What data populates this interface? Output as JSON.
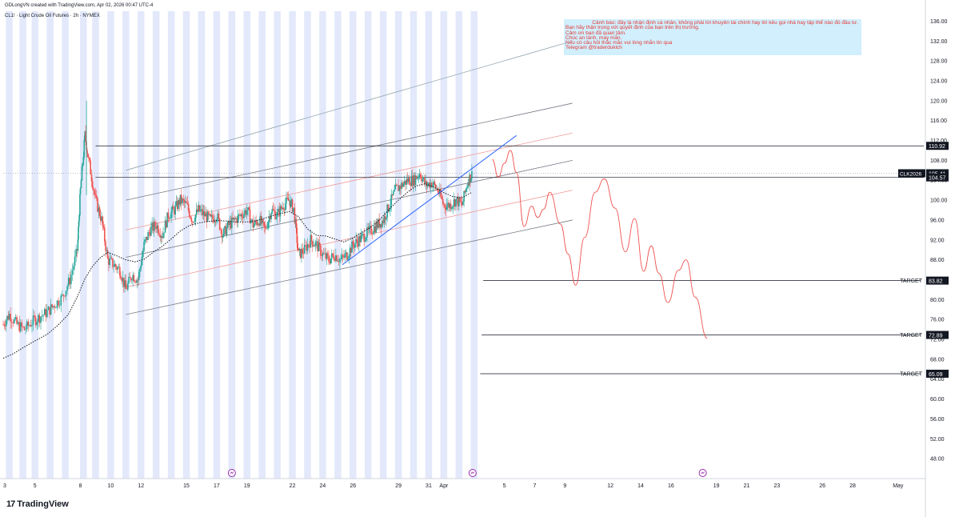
{
  "header": {
    "credit": "GDLongVN created with TradingView.com, Apr 02, 2026 00:47 UTC-4",
    "symbol_line": "CL1! · Light Crude Oil Futures · 2h · NYMEX"
  },
  "note": {
    "lines": [
      "Cảnh báo: đây là nhận định cá nhân, không phải lời khuyên tài chính hay lời kêu gọi nhà hay tập thể nào đó đầu tư.",
      "Bạn hãy thận trọng với quyết định của bạn trên thị trường.",
      "Cảm ơn bạn đã quan tâm.",
      "Chúc an lành, may mắn.",
      "Nếu có câu hỏi thắc mắc vui lòng nhắn tin qua",
      "Telegram @traderdukich"
    ]
  },
  "branding": {
    "name": "TradingView",
    "logo_text": "17"
  },
  "colors": {
    "candle_up": "#26a69a",
    "candle_down": "#ef5350",
    "session_band": "#e3e9fb",
    "projection": "#ef5350",
    "trendline": "#2962ff",
    "channel": "#787b86",
    "ma": "#131722",
    "note_bg": "#b3e5fc",
    "note_text": "#e53935"
  },
  "chart_data": {
    "type": "candlestick",
    "title": "CL1! · Light Crude Oil Futures · 2h · NYMEX",
    "y_ticks": [
      136.0,
      132.0,
      128.0,
      124.0,
      120.0,
      116.0,
      112.0,
      108.0,
      104.0,
      100.0,
      96.0,
      92.0,
      88.0,
      84.0,
      80.0,
      76.0,
      72.0,
      68.0,
      64.0,
      60.0,
      56.0,
      52.0,
      48.0
    ],
    "y_tick_labels": [
      "136.00",
      "132.00",
      "128.00",
      "124.00",
      "120.00",
      "116.00",
      "112.00",
      "108.00",
      "104.00",
      "100.00",
      "96.00",
      "92.00",
      "88.00",
      "84.00",
      "80.00",
      "76.00",
      "72.00",
      "68.00",
      "64.00",
      "60.00",
      "56.00",
      "52.00",
      "48.00"
    ],
    "ylim": [
      44,
      138
    ],
    "x_ticks": [
      {
        "label": "3",
        "day": 3
      },
      {
        "label": "5",
        "day": 5
      },
      {
        "label": "8",
        "day": 8
      },
      {
        "label": "10",
        "day": 10
      },
      {
        "label": "12",
        "day": 12
      },
      {
        "label": "15",
        "day": 15
      },
      {
        "label": "17",
        "day": 17
      },
      {
        "label": "19",
        "day": 19
      },
      {
        "label": "22",
        "day": 22
      },
      {
        "label": "24",
        "day": 24
      },
      {
        "label": "26",
        "day": 26
      },
      {
        "label": "29",
        "day": 29
      },
      {
        "label": "31",
        "day": 31
      },
      {
        "label": "Apr",
        "day": 32
      },
      {
        "label": "5",
        "day": 36
      },
      {
        "label": "7",
        "day": 38
      },
      {
        "label": "9",
        "day": 40
      },
      {
        "label": "12",
        "day": 43
      },
      {
        "label": "14",
        "day": 45
      },
      {
        "label": "16",
        "day": 47
      },
      {
        "label": "19",
        "day": 50
      },
      {
        "label": "21",
        "day": 52
      },
      {
        "label": "23",
        "day": 54
      },
      {
        "label": "26",
        "day": 57
      },
      {
        "label": "28",
        "day": 59
      },
      {
        "label": "May",
        "day": 62
      }
    ],
    "xlim": [
      2.9,
      63.7
    ],
    "price_labels": [
      {
        "text": "110.92",
        "value": 110.92,
        "style": "black"
      },
      {
        "text": "105.41",
        "value": 105.41,
        "style": "black",
        "tag": "CLK2026"
      },
      {
        "text": "01:22:48",
        "value": 104.3,
        "style": "timer"
      },
      {
        "text": "104.57",
        "value": 104.57,
        "style": "black"
      },
      {
        "text": "83.82",
        "value": 83.82,
        "style": "black",
        "tag": "TARGET"
      },
      {
        "text": "72.89",
        "value": 72.89,
        "style": "black",
        "tag": "TARGET"
      },
      {
        "text": "65.09",
        "value": 65.09,
        "style": "black",
        "tag": "TARGET"
      }
    ],
    "horizontal_levels": [
      {
        "value": 110.92,
        "from_day": 9,
        "to_day": 63.7,
        "label": ""
      },
      {
        "value": 104.57,
        "from_day": 9,
        "to_day": 63.7,
        "label": ""
      },
      {
        "value": 83.82,
        "from_day": 34.6,
        "to_day": 63.5,
        "label": "TARGET"
      },
      {
        "value": 72.89,
        "from_day": 34.5,
        "to_day": 63.5,
        "label": "TARGET"
      },
      {
        "value": 65.09,
        "from_day": 34.4,
        "to_day": 63.5,
        "label": "TARGET"
      }
    ],
    "channel_lines": [
      {
        "from": [
          11,
          100.0
        ],
        "to": [
          40.5,
          119.5
        ],
        "color": "#787b86"
      },
      {
        "from": [
          11,
          77.0
        ],
        "to": [
          40.5,
          96.0
        ],
        "color": "#787b86"
      },
      {
        "from": [
          11,
          88.5
        ],
        "to": [
          40.5,
          108.0
        ],
        "color": "#787b86"
      },
      {
        "from": [
          11,
          82.5
        ],
        "to": [
          40.5,
          102.0
        ],
        "color": "#ef9a9a"
      },
      {
        "from": [
          11,
          94.0
        ],
        "to": [
          40.5,
          113.5
        ],
        "color": "#ef9a9a"
      },
      {
        "from": [
          11,
          106.0
        ],
        "to": [
          40.5,
          132.0
        ],
        "color": "#90a4ae"
      }
    ],
    "trendline": {
      "from": [
        25.3,
        87.0
      ],
      "to": [
        36.8,
        113.0
      ]
    },
    "projection_path": [
      [
        35.2,
        108.2
      ],
      [
        35.6,
        104.6
      ],
      [
        36.0,
        107.4
      ],
      [
        36.4,
        110.0
      ],
      [
        36.8,
        105.5
      ],
      [
        37.3,
        94.7
      ],
      [
        37.8,
        98.8
      ],
      [
        38.2,
        96.5
      ],
      [
        38.6,
        98.2
      ],
      [
        39.0,
        101.6
      ],
      [
        39.7,
        95.2
      ],
      [
        40.2,
        89.2
      ],
      [
        40.7,
        82.9
      ],
      [
        41.3,
        92.5
      ],
      [
        42.0,
        101.6
      ],
      [
        42.6,
        104.3
      ],
      [
        43.3,
        98.4
      ],
      [
        44.0,
        89.6
      ],
      [
        44.6,
        96.3
      ],
      [
        45.2,
        85.7
      ],
      [
        45.7,
        90.8
      ],
      [
        46.2,
        85.3
      ],
      [
        46.8,
        79.4
      ],
      [
        47.5,
        85.9
      ],
      [
        48.0,
        88.0
      ],
      [
        48.6,
        80.5
      ],
      [
        49.4,
        72.2
      ]
    ],
    "session_band_days": [
      3.3,
      4.2,
      5.0,
      6.0,
      7.0,
      8.2,
      9.0,
      10.0,
      11.0,
      12.0,
      13.0,
      14.0,
      15.0,
      16.0,
      17.0,
      18.0,
      19.0,
      20.0,
      21.0,
      22.0,
      23.0,
      24.0,
      25.0,
      26.0,
      27.0,
      28.0,
      29.0,
      30.0,
      31.0,
      32.0,
      33.0,
      34.0
    ],
    "session_band_width_days": 0.45,
    "news_markers": [
      18.0,
      33.9,
      49.1
    ],
    "ma_series": [
      [
        2.9,
        68.2
      ],
      [
        3.5,
        69.0
      ],
      [
        4.2,
        70.3
      ],
      [
        5.0,
        71.7
      ],
      [
        5.8,
        73.0
      ],
      [
        6.5,
        74.8
      ],
      [
        7.2,
        77.0
      ],
      [
        7.8,
        80.6
      ],
      [
        8.3,
        84.2
      ],
      [
        8.8,
        86.7
      ],
      [
        9.3,
        88.4
      ],
      [
        9.8,
        89.5
      ],
      [
        10.4,
        88.8
      ],
      [
        11.0,
        88.0
      ],
      [
        11.6,
        87.6
      ],
      [
        12.2,
        88.1
      ],
      [
        12.8,
        89.5
      ],
      [
        13.4,
        90.7
      ],
      [
        14.0,
        92.2
      ],
      [
        14.6,
        93.8
      ],
      [
        15.2,
        94.9
      ],
      [
        15.8,
        95.4
      ],
      [
        16.4,
        95.7
      ],
      [
        17.0,
        95.9
      ],
      [
        17.6,
        95.8
      ],
      [
        18.2,
        95.6
      ],
      [
        18.8,
        95.6
      ],
      [
        19.4,
        95.7
      ],
      [
        20.0,
        96.2
      ],
      [
        20.6,
        96.8
      ],
      [
        21.2,
        97.3
      ],
      [
        21.8,
        97.7
      ],
      [
        22.4,
        96.7
      ],
      [
        23.0,
        94.2
      ],
      [
        23.6,
        92.9
      ],
      [
        24.2,
        92.8
      ],
      [
        24.8,
        92.2
      ],
      [
        25.4,
        91.6
      ],
      [
        26.0,
        92.4
      ],
      [
        26.6,
        93.5
      ],
      [
        27.2,
        94.6
      ],
      [
        27.8,
        96.2
      ],
      [
        28.4,
        98.2
      ],
      [
        29.0,
        100.0
      ],
      [
        29.6,
        101.6
      ],
      [
        30.2,
        102.9
      ],
      [
        30.8,
        103.3
      ],
      [
        31.4,
        102.5
      ],
      [
        32.0,
        101.5
      ],
      [
        32.6,
        100.7
      ],
      [
        33.2,
        100.5
      ],
      [
        33.8,
        101.5
      ]
    ],
    "candles_ohlc_note": "OHLC candles generated from the close path below",
    "close_path": [
      [
        2.9,
        75
      ],
      [
        3.3,
        77
      ],
      [
        3.8,
        75
      ],
      [
        4.3,
        74
      ],
      [
        4.8,
        75.5
      ],
      [
        5.3,
        76.5
      ],
      [
        5.8,
        77.5
      ],
      [
        6.3,
        79
      ],
      [
        6.8,
        80.5
      ],
      [
        7.3,
        84
      ],
      [
        7.8,
        90
      ],
      [
        8.0,
        102
      ],
      [
        8.3,
        113
      ],
      [
        8.6,
        107
      ],
      [
        9.0,
        100
      ],
      [
        9.4,
        96
      ],
      [
        9.8,
        88
      ],
      [
        10.2,
        87
      ],
      [
        10.6,
        86
      ],
      [
        11.0,
        82
      ],
      [
        11.4,
        85
      ],
      [
        11.8,
        84
      ],
      [
        12.2,
        91
      ],
      [
        12.6,
        94
      ],
      [
        13.0,
        95
      ],
      [
        13.4,
        93
      ],
      [
        13.8,
        97
      ],
      [
        14.2,
        98
      ],
      [
        14.6,
        100
      ],
      [
        15.0,
        99
      ],
      [
        15.4,
        96
      ],
      [
        15.8,
        98
      ],
      [
        16.2,
        97
      ],
      [
        16.6,
        96
      ],
      [
        17.0,
        97
      ],
      [
        17.4,
        93
      ],
      [
        17.8,
        95
      ],
      [
        18.2,
        96
      ],
      [
        18.6,
        97
      ],
      [
        19.0,
        98
      ],
      [
        19.4,
        95
      ],
      [
        19.8,
        96
      ],
      [
        20.2,
        94
      ],
      [
        20.6,
        98
      ],
      [
        21.0,
        97
      ],
      [
        21.4,
        99
      ],
      [
        21.8,
        100
      ],
      [
        22.1,
        98
      ],
      [
        22.4,
        89
      ],
      [
        22.8,
        90
      ],
      [
        23.2,
        92
      ],
      [
        23.6,
        91
      ],
      [
        24.0,
        89
      ],
      [
        24.4,
        88
      ],
      [
        24.8,
        89
      ],
      [
        25.2,
        88
      ],
      [
        25.6,
        89
      ],
      [
        26.0,
        91
      ],
      [
        26.4,
        92
      ],
      [
        26.8,
        93
      ],
      [
        27.2,
        94
      ],
      [
        27.6,
        95
      ],
      [
        28.0,
        96
      ],
      [
        28.4,
        99
      ],
      [
        28.8,
        102
      ],
      [
        29.2,
        103
      ],
      [
        29.6,
        104
      ],
      [
        30.0,
        104
      ],
      [
        30.4,
        105.5
      ],
      [
        30.8,
        103
      ],
      [
        31.2,
        103.5
      ],
      [
        31.6,
        102
      ],
      [
        32.0,
        99
      ],
      [
        32.4,
        99
      ],
      [
        32.8,
        100
      ],
      [
        33.2,
        99
      ],
      [
        33.6,
        104
      ],
      [
        33.9,
        105.4
      ]
    ]
  }
}
